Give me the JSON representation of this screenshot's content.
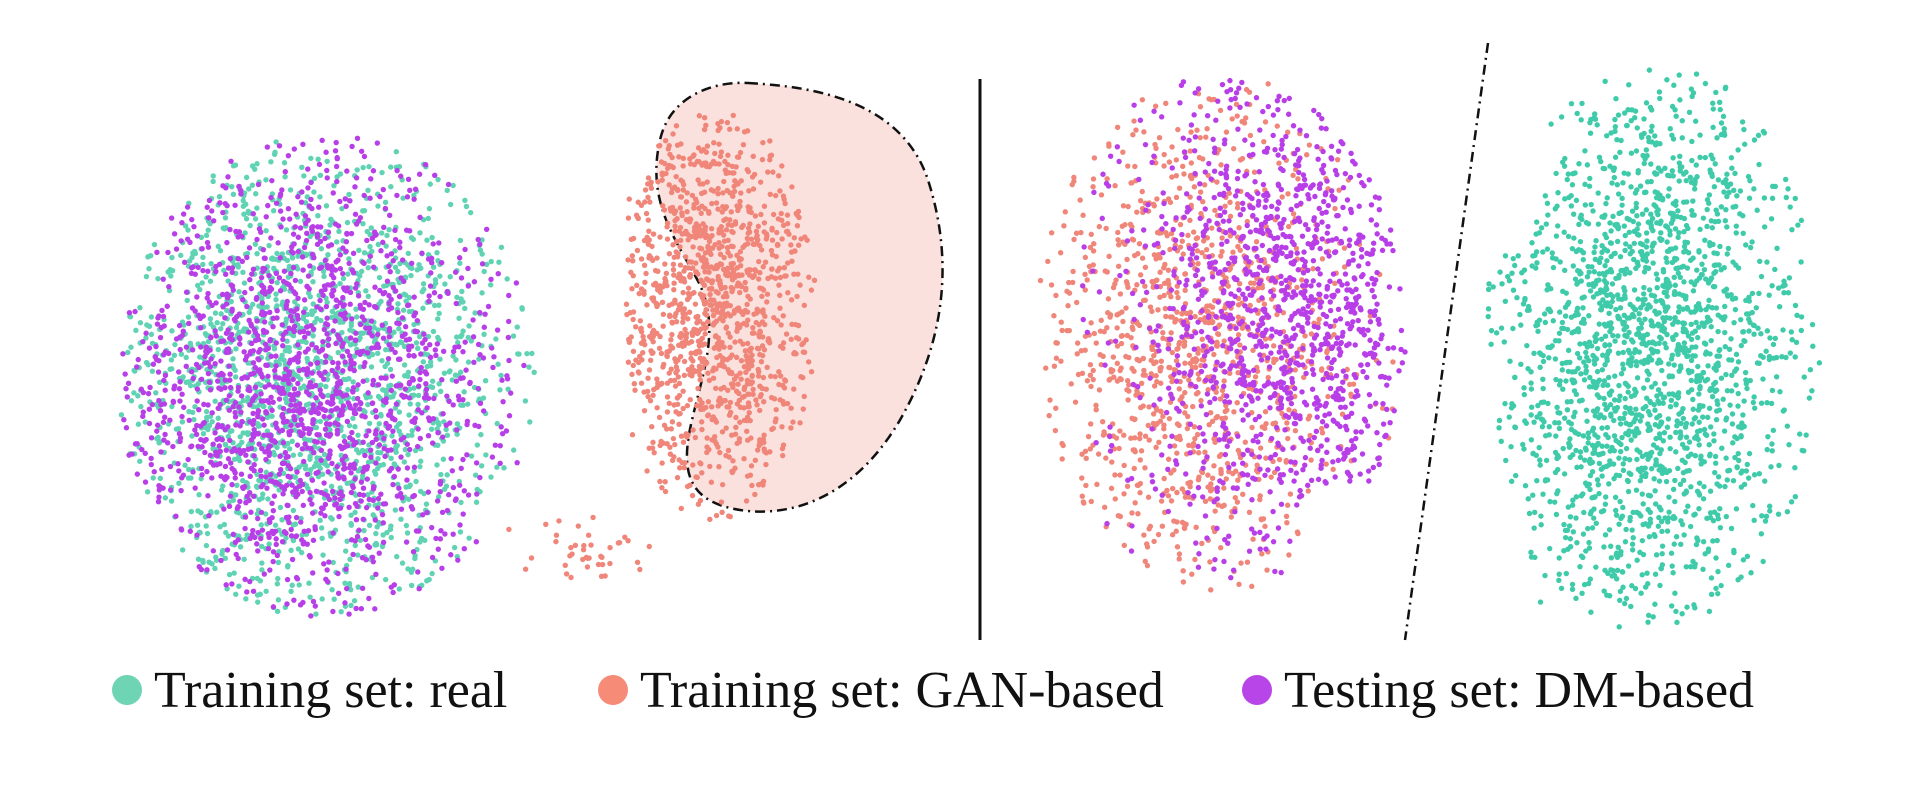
{
  "chart_data": {
    "type": "scatter",
    "title": "",
    "xlabel": "",
    "ylabel": "",
    "grid": false,
    "legend_position": "bottom",
    "panels": [
      {
        "name": "left",
        "annotations": [
          "dashed outline around GAN-based cluster"
        ],
        "series": [
          {
            "legend": "Training set: real",
            "color": "#5fd3b3",
            "clusters": [
              {
                "cx": 0.25,
                "cy": 0.55,
                "rx": 0.22,
                "ry": 0.36,
                "count": 1700
              }
            ]
          },
          {
            "legend": "Training set: GAN-based",
            "color": "#f0867a",
            "clusters": [
              {
                "cx": 0.73,
                "cy": 0.44,
                "rx": 0.11,
                "ry": 0.31,
                "count": 1200
              },
              {
                "cx": 0.58,
                "cy": 0.82,
                "rx": 0.06,
                "ry": 0.05,
                "count": 40
              }
            ]
          },
          {
            "legend": "Testing set: DM-based",
            "color": "#b83ee8",
            "clusters": [
              {
                "cx": 0.25,
                "cy": 0.57,
                "rx": 0.22,
                "ry": 0.36,
                "count": 1600
              }
            ]
          }
        ]
      },
      {
        "name": "right",
        "annotations": [
          "dash-dot separator line"
        ],
        "series": [
          {
            "legend": "Training set: real",
            "color": "#3fcba9",
            "clusters": [
              {
                "cx": 0.73,
                "cy": 0.5,
                "rx": 0.17,
                "ry": 0.42,
                "count": 1900
              }
            ]
          },
          {
            "legend": "Training set: GAN-based",
            "color": "#f0867a",
            "clusters": [
              {
                "cx": 0.2,
                "cy": 0.5,
                "rx": 0.17,
                "ry": 0.38,
                "count": 1100
              }
            ]
          },
          {
            "legend": "Testing set: DM-based",
            "color": "#b83ee8",
            "clusters": [
              {
                "cx": 0.32,
                "cy": 0.45,
                "rx": 0.17,
                "ry": 0.4,
                "count": 1200
              }
            ]
          }
        ]
      }
    ]
  },
  "legend": {
    "items": [
      {
        "label": "Training set: real",
        "color": "#6fd4b3"
      },
      {
        "label": "Training set: GAN-based",
        "color": "#f68b77"
      },
      {
        "label": "Testing set: DM-based",
        "color": "#b845e8"
      }
    ]
  }
}
